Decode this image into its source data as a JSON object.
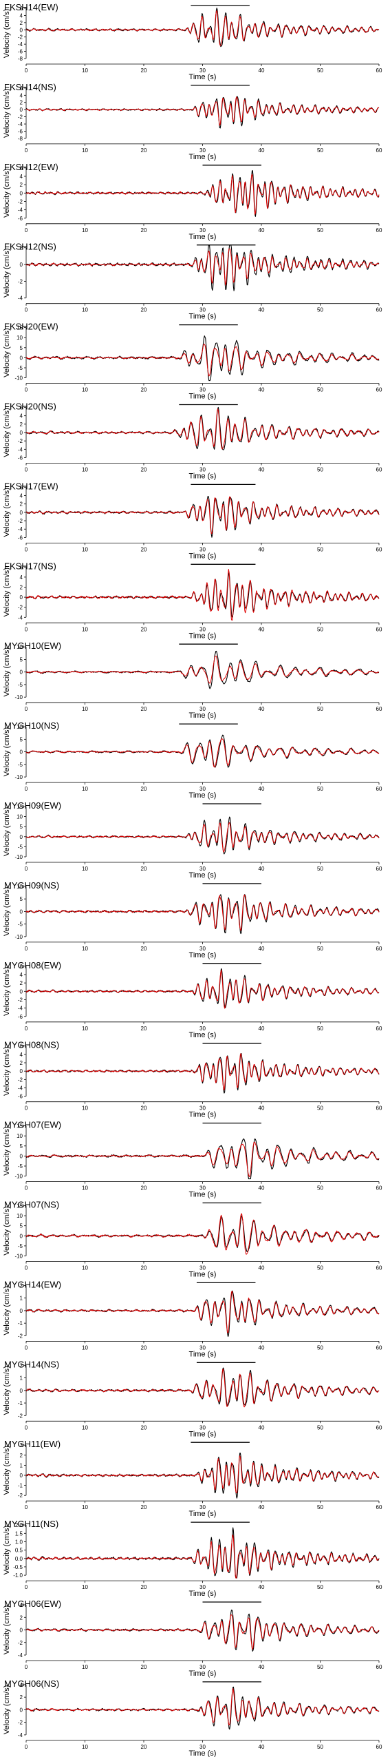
{
  "chart_data": [
    {
      "type": "line",
      "title": "FKSH14(EW)",
      "xlabel": "Time (s)",
      "ylabel": "Velocity (cm/s)",
      "xlim": [
        0,
        60
      ],
      "ylim": [
        -8,
        6
      ],
      "yticks": [
        -8,
        -6,
        -4,
        -2,
        0,
        2,
        4,
        6
      ],
      "xticks": [
        0,
        10,
        20,
        30,
        40,
        50,
        60
      ],
      "window": [
        28,
        38
      ],
      "series": [
        {
          "color": "#000000",
          "onset": 27,
          "amp": 6,
          "period": 1.3
        },
        {
          "color": "#e00000",
          "onset": 27,
          "amp": 5.2,
          "period": 1.3
        }
      ]
    },
    {
      "type": "line",
      "title": "FKSH14(NS)",
      "xlabel": "Time (s)",
      "ylabel": "Velocity (cm/s)",
      "xlim": [
        0,
        60
      ],
      "ylim": [
        -8,
        6
      ],
      "yticks": [
        -8,
        -6,
        -4,
        -2,
        0,
        2,
        4,
        6
      ],
      "xticks": [
        0,
        10,
        20,
        30,
        40,
        50,
        60
      ],
      "window": [
        28,
        38
      ],
      "series": [
        {
          "color": "#000000",
          "onset": 28,
          "amp": 5,
          "period": 1.2
        },
        {
          "color": "#e00000",
          "onset": 28,
          "amp": 4.2,
          "period": 1.2
        }
      ]
    },
    {
      "type": "line",
      "title": "FKSH12(EW)",
      "xlabel": "Time (s)",
      "ylabel": "Velocity (cm/s)",
      "xlim": [
        0,
        60
      ],
      "ylim": [
        -6,
        6
      ],
      "yticks": [
        -6,
        -4,
        -2,
        0,
        2,
        4,
        6
      ],
      "xticks": [
        0,
        10,
        20,
        30,
        40,
        50,
        60
      ],
      "window": [
        30,
        40
      ],
      "series": [
        {
          "color": "#000000",
          "onset": 30,
          "amp": 5.5,
          "period": 1.1
        },
        {
          "color": "#e00000",
          "onset": 30,
          "amp": 5,
          "period": 1.1
        }
      ]
    },
    {
      "type": "line",
      "title": "FKSH12(NS)",
      "xlabel": "Time (s)",
      "ylabel": "Velocity (cm/s)",
      "xlim": [
        0,
        60
      ],
      "ylim": [
        -4,
        2
      ],
      "yticks": [
        -4,
        -2,
        0,
        2
      ],
      "xticks": [
        0,
        10,
        20,
        30,
        40,
        50,
        60
      ],
      "window": [
        29,
        39
      ],
      "series": [
        {
          "color": "#000000",
          "onset": 28,
          "amp": 3.5,
          "period": 1.2
        },
        {
          "color": "#e00000",
          "onset": 28,
          "amp": 2.5,
          "period": 1.2
        }
      ]
    },
    {
      "type": "line",
      "title": "FKSH20(EW)",
      "xlabel": "Time (s)",
      "ylabel": "Velocity (cm/s)",
      "xlim": [
        0,
        60
      ],
      "ylim": [
        -10,
        15
      ],
      "yticks": [
        -10,
        -5,
        0,
        5,
        10,
        15
      ],
      "xticks": [
        0,
        10,
        20,
        30,
        40,
        50,
        60
      ],
      "window": [
        26,
        36
      ],
      "series": [
        {
          "color": "#000000",
          "onset": 26,
          "amp": 13,
          "period": 1.8
        },
        {
          "color": "#e00000",
          "onset": 26,
          "amp": 9,
          "period": 1.8
        }
      ]
    },
    {
      "type": "line",
      "title": "FKSH20(NS)",
      "xlabel": "Time (s)",
      "ylabel": "Velocity (cm/s)",
      "xlim": [
        0,
        60
      ],
      "ylim": [
        -6,
        6
      ],
      "yticks": [
        -6,
        -4,
        -2,
        0,
        2,
        4,
        6
      ],
      "xticks": [
        0,
        10,
        20,
        30,
        40,
        50,
        60
      ],
      "window": [
        26,
        36
      ],
      "series": [
        {
          "color": "#000000",
          "onset": 25,
          "amp": 5.5,
          "period": 1.5
        },
        {
          "color": "#e00000",
          "onset": 25,
          "amp": 5,
          "period": 1.5
        }
      ]
    },
    {
      "type": "line",
      "title": "FKSH17(EW)",
      "xlabel": "Time (s)",
      "ylabel": "Velocity (cm/s)",
      "xlim": [
        0,
        60
      ],
      "ylim": [
        -6,
        6
      ],
      "yticks": [
        -6,
        -4,
        -2,
        0,
        2,
        4,
        6
      ],
      "xticks": [
        0,
        10,
        20,
        30,
        40,
        50,
        60
      ],
      "window": [
        28,
        39
      ],
      "series": [
        {
          "color": "#000000",
          "onset": 27,
          "amp": 5.5,
          "period": 1.3
        },
        {
          "color": "#e00000",
          "onset": 27,
          "amp": 5,
          "period": 1.3
        }
      ]
    },
    {
      "type": "line",
      "title": "FKSH17(NS)",
      "xlabel": "Time (s)",
      "ylabel": "Velocity (cm/s)",
      "xlim": [
        0,
        60
      ],
      "ylim": [
        -4,
        6
      ],
      "yticks": [
        -4,
        -2,
        0,
        2,
        4,
        6
      ],
      "xticks": [
        0,
        10,
        20,
        30,
        40,
        50,
        60
      ],
      "window": [
        28,
        39
      ],
      "series": [
        {
          "color": "#000000",
          "onset": 28,
          "amp": 4.5,
          "period": 1.2
        },
        {
          "color": "#e00000",
          "onset": 28,
          "amp": 5,
          "period": 1.2
        }
      ]
    },
    {
      "type": "line",
      "title": "MYGH10(EW)",
      "xlabel": "Time (s)",
      "ylabel": "Velocity (cm/s)",
      "xlim": [
        0,
        60
      ],
      "ylim": [
        -10,
        10
      ],
      "yticks": [
        -10,
        -5,
        0,
        5,
        10
      ],
      "xticks": [
        0,
        10,
        20,
        30,
        40,
        50,
        60
      ],
      "window": [
        26,
        36
      ],
      "series": [
        {
          "color": "#000000",
          "onset": 26,
          "amp": 8,
          "period": 2.2
        },
        {
          "color": "#e00000",
          "onset": 26,
          "amp": 6,
          "period": 2.2
        }
      ]
    },
    {
      "type": "line",
      "title": "MYGH10(NS)",
      "xlabel": "Time (s)",
      "ylabel": "Velocity (cm/s)",
      "xlim": [
        0,
        60
      ],
      "ylim": [
        -10,
        10
      ],
      "yticks": [
        -10,
        -5,
        0,
        5,
        10
      ],
      "xticks": [
        0,
        10,
        20,
        30,
        40,
        50,
        60
      ],
      "window": [
        26,
        36
      ],
      "series": [
        {
          "color": "#000000",
          "onset": 26,
          "amp": 8,
          "period": 2
        },
        {
          "color": "#e00000",
          "onset": 26,
          "amp": 7,
          "period": 2
        }
      ]
    },
    {
      "type": "line",
      "title": "MYGH09(EW)",
      "xlabel": "Time (s)",
      "ylabel": "Velocity (cm/s)",
      "xlim": [
        0,
        60
      ],
      "ylim": [
        -10,
        15
      ],
      "yticks": [
        -10,
        -5,
        0,
        5,
        10,
        15
      ],
      "xticks": [
        0,
        10,
        20,
        30,
        40,
        50,
        60
      ],
      "window": [
        30,
        40
      ],
      "series": [
        {
          "color": "#000000",
          "onset": 27,
          "amp": 10,
          "period": 1.4
        },
        {
          "color": "#e00000",
          "onset": 27,
          "amp": 8,
          "period": 1.4
        }
      ]
    },
    {
      "type": "line",
      "title": "MYGH09(NS)",
      "xlabel": "Time (s)",
      "ylabel": "Velocity (cm/s)",
      "xlim": [
        0,
        60
      ],
      "ylim": [
        -10,
        10
      ],
      "yticks": [
        -10,
        -5,
        0,
        5,
        10
      ],
      "xticks": [
        0,
        10,
        20,
        30,
        40,
        50,
        60
      ],
      "window": [
        30,
        40
      ],
      "series": [
        {
          "color": "#000000",
          "onset": 27,
          "amp": 9,
          "period": 1.4
        },
        {
          "color": "#e00000",
          "onset": 27,
          "amp": 8,
          "period": 1.4
        }
      ]
    },
    {
      "type": "line",
      "title": "MYGH08(EW)",
      "xlabel": "Time (s)",
      "ylabel": "Velocity (cm/s)",
      "xlim": [
        0,
        60
      ],
      "ylim": [
        -6,
        6
      ],
      "yticks": [
        -6,
        -4,
        -2,
        0,
        2,
        4,
        6
      ],
      "xticks": [
        0,
        10,
        20,
        30,
        40,
        50,
        60
      ],
      "window": [
        30,
        40
      ],
      "series": [
        {
          "color": "#000000",
          "onset": 28,
          "amp": 5,
          "period": 1.3
        },
        {
          "color": "#e00000",
          "onset": 28,
          "amp": 4.5,
          "period": 1.3
        }
      ]
    },
    {
      "type": "line",
      "title": "MYGH08(NS)",
      "xlabel": "Time (s)",
      "ylabel": "Velocity (cm/s)",
      "xlim": [
        0,
        60
      ],
      "ylim": [
        -6,
        6
      ],
      "yticks": [
        -6,
        -4,
        -2,
        0,
        2,
        4,
        6
      ],
      "xticks": [
        0,
        10,
        20,
        30,
        40,
        50,
        60
      ],
      "window": [
        30,
        40
      ],
      "series": [
        {
          "color": "#000000",
          "onset": 28,
          "amp": 5,
          "period": 1.2
        },
        {
          "color": "#e00000",
          "onset": 28,
          "amp": 4.5,
          "period": 1.2
        }
      ]
    },
    {
      "type": "line",
      "title": "MYGH07(EW)",
      "xlabel": "Time (s)",
      "ylabel": "Velocity (cm/s)",
      "xlim": [
        0,
        60
      ],
      "ylim": [
        -10,
        15
      ],
      "yticks": [
        -10,
        -5,
        0,
        5,
        10,
        15
      ],
      "xticks": [
        0,
        10,
        20,
        30,
        40,
        50,
        60
      ],
      "window": [
        30,
        40
      ],
      "series": [
        {
          "color": "#000000",
          "onset": 30,
          "amp": 12,
          "period": 2
        },
        {
          "color": "#e00000",
          "onset": 30,
          "amp": 9,
          "period": 2
        }
      ]
    },
    {
      "type": "line",
      "title": "MYGH07(NS)",
      "xlabel": "Time (s)",
      "ylabel": "Velocity (cm/s)",
      "xlim": [
        0,
        60
      ],
      "ylim": [
        -10,
        15
      ],
      "yticks": [
        -10,
        -5,
        0,
        5,
        10,
        15
      ],
      "xticks": [
        0,
        10,
        20,
        30,
        40,
        50,
        60
      ],
      "window": [
        30,
        40
      ],
      "series": [
        {
          "color": "#000000",
          "onset": 30,
          "amp": 11,
          "period": 1.8
        },
        {
          "color": "#e00000",
          "onset": 30,
          "amp": 12,
          "period": 1.8
        }
      ]
    },
    {
      "type": "line",
      "title": "MYGH14(EW)",
      "xlabel": "Time (s)",
      "ylabel": "Velocity (cm/s)",
      "xlim": [
        0,
        60
      ],
      "ylim": [
        -2,
        2
      ],
      "yticks": [
        -2,
        -1,
        0,
        1,
        2
      ],
      "xticks": [
        0,
        10,
        20,
        30,
        40,
        50,
        60
      ],
      "window": [
        29,
        39
      ],
      "series": [
        {
          "color": "#000000",
          "onset": 28,
          "amp": 1.8,
          "period": 1.5
        },
        {
          "color": "#e00000",
          "onset": 28,
          "amp": 1.6,
          "period": 1.5
        }
      ]
    },
    {
      "type": "line",
      "title": "MYGH14(NS)",
      "xlabel": "Time (s)",
      "ylabel": "Velocity (cm/s)",
      "xlim": [
        0,
        60
      ],
      "ylim": [
        -2,
        2
      ],
      "yticks": [
        -2,
        -1,
        0,
        1,
        2
      ],
      "xticks": [
        0,
        10,
        20,
        30,
        40,
        50,
        60
      ],
      "window": [
        29,
        39
      ],
      "series": [
        {
          "color": "#000000",
          "onset": 28,
          "amp": 1.8,
          "period": 1.5
        },
        {
          "color": "#e00000",
          "onset": 28,
          "amp": 1.7,
          "period": 1.5
        }
      ]
    },
    {
      "type": "line",
      "title": "MYGH11(EW)",
      "xlabel": "Time (s)",
      "ylabel": "Velocity (cm/s)",
      "xlim": [
        0,
        60
      ],
      "ylim": [
        -2,
        3
      ],
      "yticks": [
        -2,
        -1,
        0,
        1,
        2,
        3
      ],
      "xticks": [
        0,
        10,
        20,
        30,
        40,
        50,
        60
      ],
      "window": [
        28,
        38
      ],
      "series": [
        {
          "color": "#000000",
          "onset": 29,
          "amp": 2.4,
          "period": 1.2
        },
        {
          "color": "#e00000",
          "onset": 29,
          "amp": 2,
          "period": 1.2
        }
      ]
    },
    {
      "type": "line",
      "title": "MYGH11(NS)",
      "xlabel": "Time (s)",
      "ylabel": "Velocity (cm/s)",
      "xlim": [
        0,
        60
      ],
      "ylim": [
        -1.0,
        2.0
      ],
      "yticks": [
        -1.0,
        -0.5,
        0.0,
        0.5,
        1.0,
        1.5,
        2.0
      ],
      "xticks": [
        0,
        10,
        20,
        30,
        40,
        50,
        60
      ],
      "window": [
        28,
        38
      ],
      "series": [
        {
          "color": "#000000",
          "onset": 28,
          "amp": 1.6,
          "period": 1.2
        },
        {
          "color": "#e00000",
          "onset": 28,
          "amp": 1.3,
          "period": 1.2
        }
      ]
    },
    {
      "type": "line",
      "title": "MYGH06(EW)",
      "xlabel": "Time (s)",
      "ylabel": "Velocity (cm/s)",
      "xlim": [
        0,
        60
      ],
      "ylim": [
        -4,
        4
      ],
      "yticks": [
        -4,
        -2,
        0,
        2,
        4
      ],
      "xticks": [
        0,
        10,
        20,
        30,
        40,
        50,
        60
      ],
      "window": [
        30,
        40
      ],
      "series": [
        {
          "color": "#000000",
          "onset": 29,
          "amp": 3.5,
          "period": 1.5
        },
        {
          "color": "#e00000",
          "onset": 29,
          "amp": 3,
          "period": 1.5
        }
      ]
    },
    {
      "type": "line",
      "title": "MYGH06(NS)",
      "xlabel": "Time (s)",
      "ylabel": "Velocity (cm/s)",
      "xlim": [
        0,
        60
      ],
      "ylim": [
        -4,
        4
      ],
      "yticks": [
        -4,
        -2,
        0,
        2,
        4
      ],
      "xticks": [
        0,
        10,
        20,
        30,
        40,
        50,
        60
      ],
      "window": [
        30,
        40
      ],
      "series": [
        {
          "color": "#000000",
          "onset": 29,
          "amp": 3.5,
          "period": 1.4
        },
        {
          "color": "#e00000",
          "onset": 29,
          "amp": 3,
          "period": 1.4
        }
      ]
    }
  ]
}
